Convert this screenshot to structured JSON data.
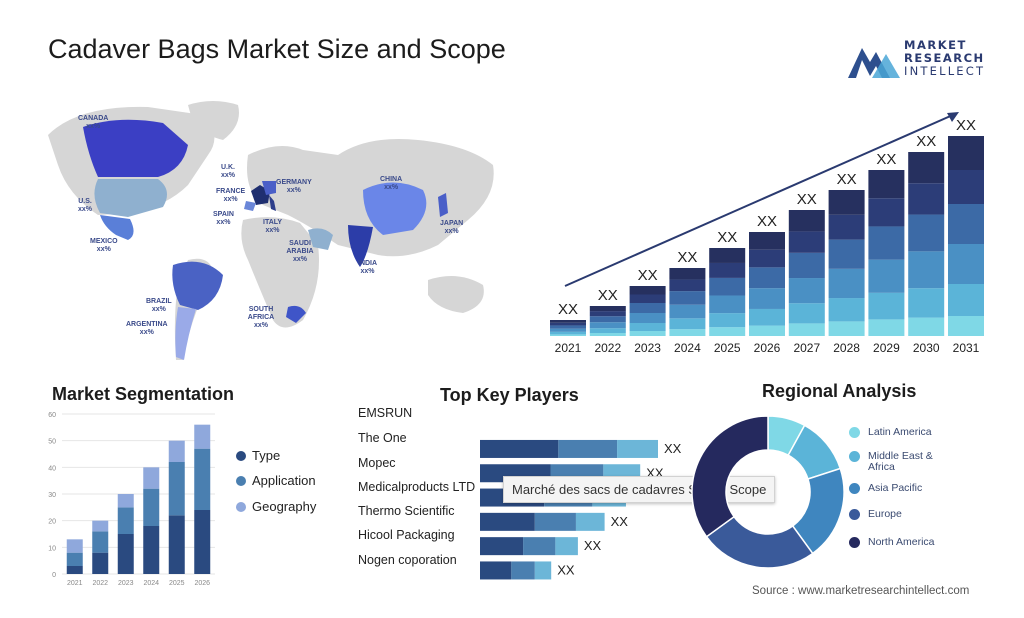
{
  "page_title": "Cadaver Bags Market Size and Scope",
  "logo": {
    "line1": "MARKET",
    "line2": "RESEARCH",
    "line3": "INTELLECT"
  },
  "map_labels": [
    {
      "name": "CANADA",
      "value": "xx%"
    },
    {
      "name": "U.S.",
      "value": "xx%"
    },
    {
      "name": "MEXICO",
      "value": "xx%"
    },
    {
      "name": "BRAZIL",
      "value": "xx%"
    },
    {
      "name": "ARGENTINA",
      "value": "xx%"
    },
    {
      "name": "U.K.",
      "value": "xx%"
    },
    {
      "name": "FRANCE",
      "value": "xx%"
    },
    {
      "name": "SPAIN",
      "value": "xx%"
    },
    {
      "name": "GERMANY",
      "value": "xx%"
    },
    {
      "name": "ITALY",
      "value": "xx%"
    },
    {
      "name": "SAUDI ARABIA",
      "value": "xx%"
    },
    {
      "name": "SOUTH AFRICA",
      "value": "xx%"
    },
    {
      "name": "CHINA",
      "value": "xx%"
    },
    {
      "name": "INDIA",
      "value": "xx%"
    },
    {
      "name": "JAPAN",
      "value": "xx%"
    }
  ],
  "chart_data": [
    {
      "type": "bar",
      "stacked": true,
      "categories": [
        "2021",
        "2022",
        "2023",
        "2024",
        "2025",
        "2026",
        "2027",
        "2028",
        "2029",
        "2030",
        "2031"
      ],
      "relative_totals": [
        0.08,
        0.15,
        0.25,
        0.34,
        0.44,
        0.52,
        0.63,
        0.73,
        0.83,
        0.92,
        1.0
      ],
      "data_labels": [
        "XX",
        "XX",
        "XX",
        "XX",
        "XX",
        "XX",
        "XX",
        "XX",
        "XX",
        "XX",
        "XX"
      ],
      "segment_colors": [
        "#7fd8e6",
        "#5bb4d8",
        "#4a90c4",
        "#3c6aa6",
        "#2c3d78",
        "#26305f"
      ],
      "trend_arrow": true
    },
    {
      "type": "bar",
      "stacked": true,
      "title": "Market Segmentation",
      "categories": [
        "2021",
        "2022",
        "2023",
        "2024",
        "2025",
        "2026"
      ],
      "ylim": [
        0,
        60
      ],
      "yticks": [
        0,
        10,
        20,
        30,
        40,
        50,
        60
      ],
      "series": [
        {
          "name": "Type",
          "color": "#2a4a80",
          "values": [
            3,
            8,
            15,
            18,
            22,
            24
          ]
        },
        {
          "name": "Application",
          "color": "#4a7fb0",
          "values": [
            5,
            8,
            10,
            14,
            20,
            23
          ]
        },
        {
          "name": "Geography",
          "color": "#8fa8dc",
          "values": [
            5,
            4,
            5,
            8,
            8,
            9
          ]
        }
      ],
      "grid": true
    },
    {
      "type": "bar",
      "orientation": "horizontal",
      "stacked": true,
      "title": "Top Key Players",
      "categories": [
        "EMSRUN",
        "The One",
        "Mopec",
        "Medicalproducts LTD",
        "Thermo Scientific",
        "Hicool Packaging",
        "Nogen coporation"
      ],
      "relative_values": [
        0,
        1.0,
        0.9,
        0.82,
        0.7,
        0.55,
        0.4
      ],
      "data_labels": [
        "",
        "XX",
        "XX",
        "XX",
        "XX",
        "XX",
        "XX"
      ],
      "segment_colors": [
        "#2a4a80",
        "#4a7fb0",
        "#6cb6d8"
      ]
    },
    {
      "type": "pie",
      "donut": true,
      "title": "Regional Analysis",
      "labels": [
        "Latin America",
        "Middle East & Africa",
        "Asia Pacific",
        "Europe",
        "North America"
      ],
      "values": [
        8,
        12,
        20,
        25,
        35
      ],
      "colors": [
        "#7fd8e6",
        "#5bb4d8",
        "#3f86bf",
        "#3a5a9a",
        "#25295e"
      ]
    }
  ],
  "tooltip": "Marché des sacs de cadavres Size & Scope",
  "source": "Source : www.marketresearchintellect.com"
}
